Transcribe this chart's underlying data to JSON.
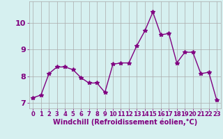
{
  "x": [
    0,
    1,
    2,
    3,
    4,
    5,
    6,
    7,
    8,
    9,
    10,
    11,
    12,
    13,
    14,
    15,
    16,
    17,
    18,
    19,
    20,
    21,
    22,
    23
  ],
  "y": [
    7.2,
    7.3,
    8.1,
    8.35,
    8.35,
    8.25,
    7.95,
    7.75,
    7.75,
    7.4,
    8.45,
    8.5,
    8.5,
    9.15,
    9.7,
    10.4,
    9.55,
    9.6,
    8.5,
    8.9,
    8.9,
    8.1,
    8.15,
    7.1
  ],
  "line_color": "#800080",
  "marker": "*",
  "markersize": 4,
  "linewidth": 1.0,
  "bg_color": "#d6f0f0",
  "grid_color": "#aaaaaa",
  "xlabel": "Windchill (Refroidissement éolien,°C)",
  "xlabel_fontsize": 7,
  "xlabel_color": "#800080",
  "tick_color": "#800080",
  "tick_fontsize": 6,
  "ylim": [
    6.8,
    10.8
  ],
  "xlim": [
    -0.5,
    23.5
  ],
  "yticks": [
    7,
    8,
    9,
    10
  ],
  "xticks": [
    0,
    1,
    2,
    3,
    4,
    5,
    6,
    7,
    8,
    9,
    10,
    11,
    12,
    13,
    14,
    15,
    16,
    17,
    18,
    19,
    20,
    21,
    22,
    23
  ]
}
